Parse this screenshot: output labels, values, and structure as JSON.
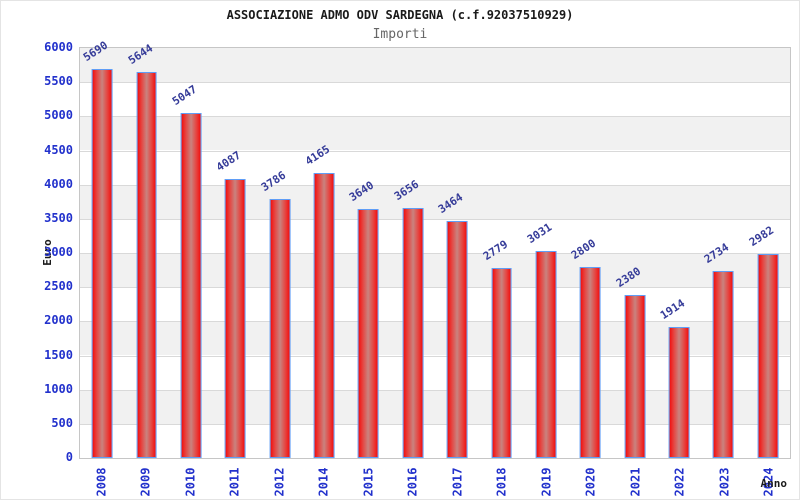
{
  "page": {
    "title": "ASSOCIAZIONE ADMO ODV SARDEGNA (c.f.92037510929)",
    "subtitle": "Importi"
  },
  "chart_data": {
    "type": "bar",
    "title": "ASSOCIAZIONE ADMO ODV SARDEGNA (c.f.92037510929)",
    "subtitle": "Importi",
    "xlabel": "Anno",
    "ylabel": "Euro",
    "categories": [
      "2008",
      "2009",
      "2010",
      "2011",
      "2012",
      "2014",
      "2015",
      "2016",
      "2017",
      "2018",
      "2019",
      "2020",
      "2021",
      "2022",
      "2023",
      "2024"
    ],
    "values": [
      5690,
      5644,
      5047,
      4087,
      3786,
      4165,
      3640,
      3656,
      3464,
      2779,
      3031,
      2800,
      2380,
      1914,
      2734,
      2982
    ],
    "ylim": [
      0,
      6000
    ],
    "ytick_step": 500,
    "grid": "horizontal alternating bands",
    "legend": "none",
    "bar_value_labels_rotated": true,
    "colors": {
      "bar_fill_edge": "#f10e0e",
      "bar_fill_inner": "#e64440",
      "bar_fill_mid": "#c9837f",
      "bar_border": "#5f9df6",
      "tick_label": "#2231cc",
      "value_label": "#363c99",
      "band_gray": "#f1f1f1",
      "band_white": "#ffffff",
      "grid_line": "#d9d9d9",
      "plot_border": "#c6c6c6",
      "title_color": "#1a1a1a",
      "subtitle_color": "#666666"
    }
  }
}
